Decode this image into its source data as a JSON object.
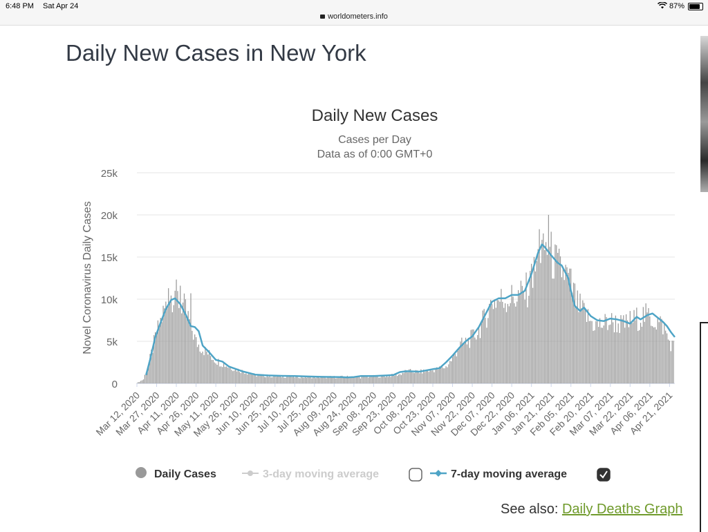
{
  "statusbar": {
    "time": "6:48 PM",
    "date": "Sat Apr 24",
    "url": "worldometers.info",
    "battery": "87%"
  },
  "page": {
    "title": "Daily New Cases in New York",
    "see_also_prefix": "See also:",
    "see_also_link": "Daily Deaths Graph"
  },
  "chart_data": {
    "type": "bar",
    "title": "Daily New Cases",
    "subtitle_1": "Cases per Day",
    "subtitle_2": "Data as of 0:00 GMT+0",
    "ylabel": "Novel Coronavirus Daily Cases",
    "ylim": [
      0,
      25000
    ],
    "yticks": [
      0,
      5000,
      10000,
      15000,
      20000,
      25000
    ],
    "ytick_labels": [
      "0",
      "5k",
      "10k",
      "15k",
      "20k",
      "25k"
    ],
    "xtick_labels": [
      "Mar 12, 2020",
      "Mar 27, 2020",
      "Apr 11, 2020",
      "Apr 26, 2020",
      "May 11, 2020",
      "May 26, 2020",
      "Jun 10, 2020",
      "Jun 25, 2020",
      "Jul 10, 2020",
      "Jul 25, 2020",
      "Aug 09, 2020",
      "Aug 24, 2020",
      "Sep 08, 2020",
      "Sep 23, 2020",
      "Oct 08, 2020",
      "Oct 23, 2020",
      "Nov 07, 2020",
      "Nov 22, 2020",
      "Dec 07, 2020",
      "Dec 22, 2020",
      "Jan 06, 2021",
      "Jan 21, 2021",
      "Feb 05, 2021",
      "Feb 20, 2021",
      "Mar 07, 2021",
      "Mar 22, 2021",
      "Apr 06, 2021",
      "Apr 21, 2021"
    ],
    "tick_interval_days": 15,
    "num_days": 409,
    "daily_anchors": [
      [
        0,
        50
      ],
      [
        5,
        500
      ],
      [
        10,
        3000
      ],
      [
        14,
        5500
      ],
      [
        20,
        8500
      ],
      [
        25,
        10500
      ],
      [
        28,
        11000
      ],
      [
        32,
        10000
      ],
      [
        35,
        9500
      ],
      [
        40,
        7500
      ],
      [
        45,
        5000
      ],
      [
        50,
        4200
      ],
      [
        55,
        3500
      ],
      [
        60,
        2800
      ],
      [
        70,
        2000
      ],
      [
        80,
        1500
      ],
      [
        90,
        1000
      ],
      [
        100,
        900
      ],
      [
        120,
        800
      ],
      [
        140,
        750
      ],
      [
        160,
        800
      ],
      [
        170,
        750
      ],
      [
        180,
        850
      ],
      [
        190,
        900
      ],
      [
        200,
        1100
      ],
      [
        205,
        1500
      ],
      [
        215,
        1400
      ],
      [
        225,
        1600
      ],
      [
        235,
        2000
      ],
      [
        240,
        3000
      ],
      [
        245,
        4500
      ],
      [
        250,
        5000
      ],
      [
        255,
        5500
      ],
      [
        260,
        6500
      ],
      [
        265,
        8000
      ],
      [
        270,
        10000
      ],
      [
        280,
        10200
      ],
      [
        290,
        10500
      ],
      [
        295,
        11000
      ],
      [
        300,
        12000
      ],
      [
        305,
        15000
      ],
      [
        310,
        16500
      ],
      [
        315,
        15500
      ],
      [
        320,
        14000
      ],
      [
        325,
        13500
      ],
      [
        330,
        12000
      ],
      [
        335,
        9500
      ],
      [
        340,
        8500
      ],
      [
        345,
        7500
      ],
      [
        350,
        7000
      ],
      [
        355,
        7200
      ],
      [
        360,
        7500
      ],
      [
        365,
        7300
      ],
      [
        370,
        7000
      ],
      [
        375,
        7500
      ],
      [
        380,
        7800
      ],
      [
        385,
        8200
      ],
      [
        390,
        8000
      ],
      [
        395,
        7500
      ],
      [
        400,
        7000
      ],
      [
        405,
        5000
      ],
      [
        408,
        4500
      ]
    ],
    "spikes": [
      [
        24,
        11300
      ],
      [
        29,
        11000
      ],
      [
        33,
        11600
      ],
      [
        41,
        10700
      ],
      [
        306,
        18300
      ],
      [
        309,
        17800
      ],
      [
        313,
        20000
      ],
      [
        300,
        14200
      ]
    ],
    "moving_avg_7day": [
      [
        7,
        1000
      ],
      [
        10,
        2800
      ],
      [
        14,
        5500
      ],
      [
        18,
        7200
      ],
      [
        22,
        8800
      ],
      [
        26,
        9900
      ],
      [
        29,
        10100
      ],
      [
        33,
        9400
      ],
      [
        37,
        8200
      ],
      [
        41,
        6800
      ],
      [
        44,
        6700
      ],
      [
        47,
        6200
      ],
      [
        50,
        4500
      ],
      [
        55,
        3700
      ],
      [
        60,
        2800
      ],
      [
        65,
        2600
      ],
      [
        70,
        2000
      ],
      [
        80,
        1450
      ],
      [
        90,
        1050
      ],
      [
        100,
        950
      ],
      [
        110,
        900
      ],
      [
        120,
        880
      ],
      [
        130,
        830
      ],
      [
        140,
        790
      ],
      [
        150,
        770
      ],
      [
        155,
        760
      ],
      [
        160,
        720
      ],
      [
        165,
        760
      ],
      [
        170,
        880
      ],
      [
        180,
        880
      ],
      [
        190,
        950
      ],
      [
        195,
        1000
      ],
      [
        200,
        1350
      ],
      [
        205,
        1450
      ],
      [
        215,
        1400
      ],
      [
        225,
        1700
      ],
      [
        230,
        1800
      ],
      [
        235,
        2500
      ],
      [
        240,
        3300
      ],
      [
        245,
        4200
      ],
      [
        250,
        5000
      ],
      [
        255,
        5600
      ],
      [
        260,
        6700
      ],
      [
        265,
        8200
      ],
      [
        270,
        9700
      ],
      [
        275,
        10100
      ],
      [
        280,
        10100
      ],
      [
        285,
        10500
      ],
      [
        290,
        10500
      ],
      [
        295,
        11000
      ],
      [
        300,
        13000
      ],
      [
        305,
        15500
      ],
      [
        308,
        16500
      ],
      [
        310,
        16200
      ],
      [
        315,
        15200
      ],
      [
        320,
        14300
      ],
      [
        323,
        14000
      ],
      [
        328,
        12500
      ],
      [
        330,
        11000
      ],
      [
        333,
        9200
      ],
      [
        337,
        8600
      ],
      [
        340,
        9000
      ],
      [
        345,
        8000
      ],
      [
        350,
        7500
      ],
      [
        355,
        7400
      ],
      [
        360,
        7700
      ],
      [
        365,
        7600
      ],
      [
        370,
        7400
      ],
      [
        375,
        7100
      ],
      [
        380,
        7900
      ],
      [
        383,
        7600
      ],
      [
        388,
        8100
      ],
      [
        392,
        8300
      ],
      [
        396,
        7800
      ],
      [
        400,
        7300
      ],
      [
        403,
        6800
      ],
      [
        406,
        6100
      ],
      [
        409,
        5500
      ]
    ],
    "legend": [
      {
        "label": "Daily Cases",
        "color": "#999999",
        "enabled": true
      },
      {
        "label": "3-day moving average",
        "color": "#cccccc",
        "enabled": false
      },
      {
        "label": "7-day moving average",
        "color": "#4ea4c6",
        "enabled": true
      }
    ],
    "colors": {
      "bar": "#999999",
      "line": "#4ea4c6",
      "grid": "#e6e6e6",
      "axis_text": "#666666"
    }
  }
}
